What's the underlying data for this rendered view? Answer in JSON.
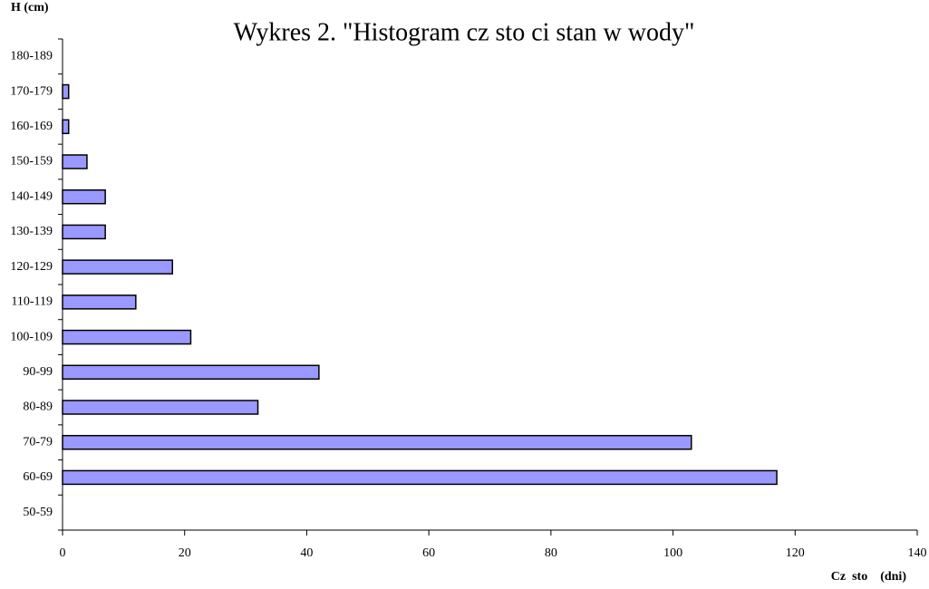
{
  "chart_data": {
    "type": "barh",
    "title": "Wykres 2. \"Histogram cz  sto  ci stan  w wody\"",
    "y_label": "H (cm)",
    "x_label": "Cz  sto    (dni)",
    "categories": [
      "50-59",
      "60-69",
      "70-79",
      "80-89",
      "90-99",
      "100-109",
      "110-119",
      "120-129",
      "130-139",
      "140-149",
      "150-159",
      "160-169",
      "170-179",
      "180-189"
    ],
    "values": [
      0,
      117,
      103,
      32,
      42,
      21,
      12,
      18,
      7,
      7,
      4,
      1,
      1,
      0
    ],
    "color": "#9999ff",
    "xlim": [
      0,
      140
    ],
    "xticks": [
      0,
      20,
      40,
      60,
      80,
      100,
      120,
      140
    ],
    "grid": false
  }
}
